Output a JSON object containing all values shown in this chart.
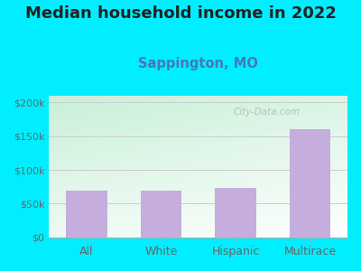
{
  "title": "Median household income in 2022",
  "subtitle": "Sappington, MO",
  "categories": [
    "All",
    "White",
    "Hispanic",
    "Multirace"
  ],
  "values": [
    70000,
    70000,
    73000,
    160000
  ],
  "bar_color": "#c5aedd",
  "background_outer": "#00eeff",
  "title_fontsize": 13,
  "subtitle_fontsize": 10.5,
  "subtitle_color": "#4477bb",
  "yticks": [
    0,
    50000,
    100000,
    150000,
    200000
  ],
  "ytick_labels": [
    "$0",
    "$50k",
    "$100k",
    "$150k",
    "$200k"
  ],
  "ylim": [
    0,
    210000
  ],
  "watermark": "City-Data.com"
}
